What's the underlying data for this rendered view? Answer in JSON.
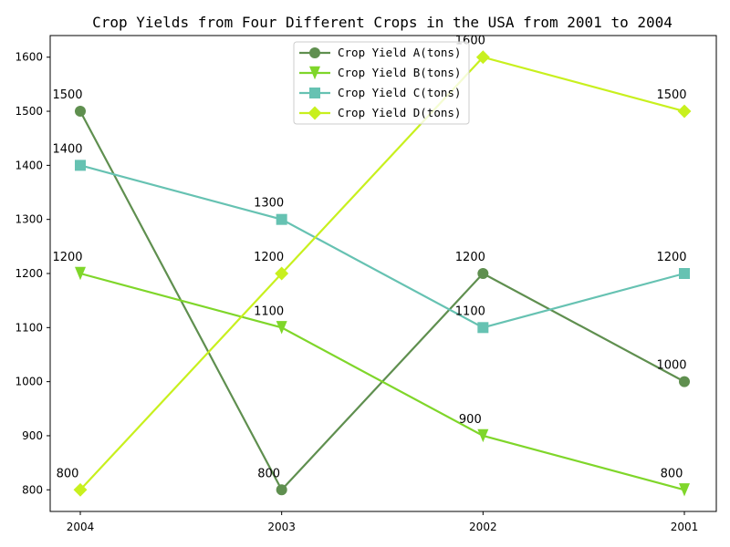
{
  "chart_data": {
    "type": "line",
    "title": "Crop Yields from Four Different Crops in the USA from 2001 to 2004",
    "xlabel": "",
    "ylabel": "",
    "categories": [
      "2004",
      "2003",
      "2002",
      "2001"
    ],
    "yticks": [
      800,
      900,
      1000,
      1100,
      1200,
      1300,
      1400,
      1500,
      1600
    ],
    "ylim": [
      760,
      1640
    ],
    "grid": false,
    "legend_position": "top-center",
    "series": [
      {
        "name": "Crop Yield A(tons)",
        "values": [
          1500,
          800,
          1200,
          1000
        ],
        "color": "#5f8f4f",
        "marker": "circle"
      },
      {
        "name": "Crop Yield B(tons)",
        "values": [
          1200,
          1100,
          900,
          800
        ],
        "color": "#7fd62a",
        "marker": "triangle-down"
      },
      {
        "name": "Crop Yield C(tons)",
        "values": [
          1400,
          1300,
          1100,
          1200
        ],
        "color": "#66c2b2",
        "marker": "square"
      },
      {
        "name": "Crop Yield D(tons)",
        "values": [
          800,
          1200,
          1600,
          1500
        ],
        "color": "#c8f01e",
        "marker": "diamond"
      }
    ]
  }
}
